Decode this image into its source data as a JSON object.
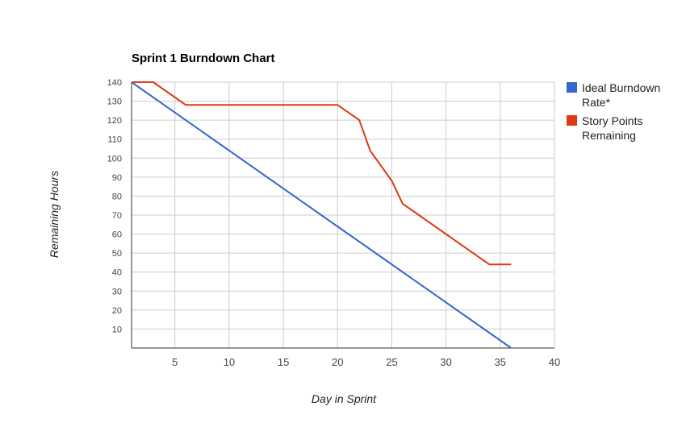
{
  "chart_data": {
    "type": "line",
    "title": "Sprint 1 Burndown Chart",
    "xlabel": "Day in Sprint",
    "ylabel": "Remaining Hours",
    "xlim": [
      1,
      40
    ],
    "ylim": [
      0,
      140
    ],
    "x_ticks": [
      5,
      10,
      15,
      20,
      25,
      30,
      35,
      40
    ],
    "y_ticks": [
      10,
      20,
      30,
      40,
      50,
      60,
      70,
      80,
      90,
      100,
      110,
      120,
      130,
      140
    ],
    "grid": true,
    "legend_position": "right",
    "series": [
      {
        "name": "Ideal Burndown Rate*",
        "name_lines": [
          "Ideal Burndown",
          "Rate*"
        ],
        "color": "#3366cc",
        "points": [
          [
            1,
            140
          ],
          [
            36,
            0
          ]
        ]
      },
      {
        "name": "Story Points Remaining",
        "name_lines": [
          "Story Points",
          "Remaining"
        ],
        "color": "#dc3912",
        "points": [
          [
            1,
            140
          ],
          [
            3,
            140
          ],
          [
            6,
            128
          ],
          [
            20,
            128
          ],
          [
            22,
            120
          ],
          [
            23,
            104
          ],
          [
            25,
            88
          ],
          [
            26,
            76
          ],
          [
            34,
            44
          ],
          [
            36,
            44
          ]
        ]
      }
    ]
  }
}
